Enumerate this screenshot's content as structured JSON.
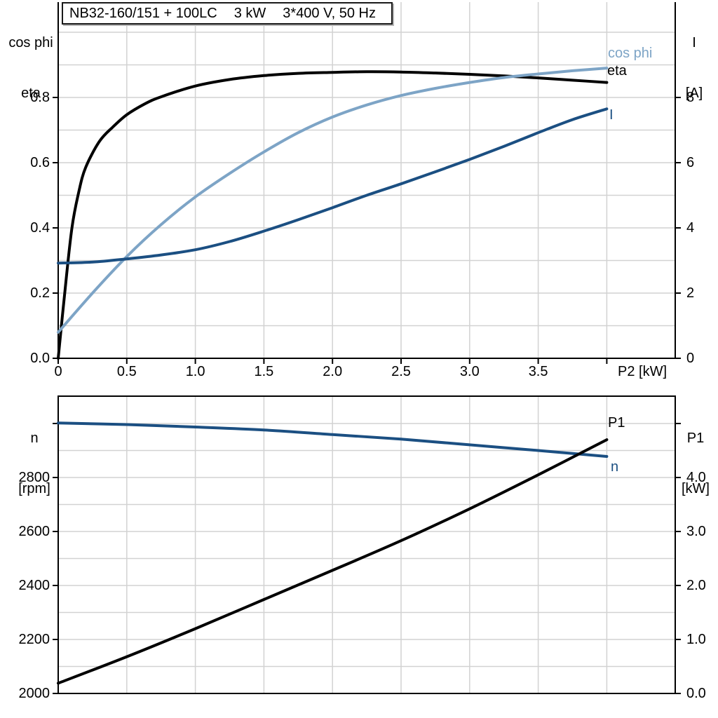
{
  "title": {
    "model": "NB32-160/151 + 100LC",
    "power": "3 kW",
    "voltage": "3*400 V, 50 Hz"
  },
  "colors": {
    "eta": "#000000",
    "cos_phi": "#7da4c6",
    "current": "#1b4f82",
    "speed": "#1b4f82",
    "p1": "#000000",
    "grid": "#d2d2d2",
    "axis": "#000000"
  },
  "chart_data": [
    {
      "id": "electrical",
      "type": "line",
      "x_axis": {
        "label": "P2 [kW]",
        "min": 0,
        "max": 4.5,
        "tick_values": [
          0,
          0.5,
          1.0,
          1.5,
          2.0,
          2.5,
          3.0,
          3.5,
          4.0
        ],
        "tick_labels": [
          "0",
          "0.5",
          "1.0",
          "1.5",
          "2.0",
          "2.5",
          "3.0",
          "3.5",
          ""
        ],
        "grid_step": 0.5
      },
      "y_left": {
        "label_lines": [
          "cos phi",
          "eta"
        ],
        "min": 0,
        "max": 1.09,
        "tick_values": [
          0,
          0.2,
          0.4,
          0.6,
          0.8
        ],
        "tick_labels": [
          "0.0",
          "0.2",
          "0.4",
          "0.6",
          "0.8"
        ],
        "grid_step": 0.1
      },
      "y_right": {
        "label_lines": [
          "I",
          "[A]"
        ],
        "min": 0,
        "max": 10.9,
        "tick_values": [
          0,
          2,
          4,
          6,
          8
        ],
        "tick_labels": [
          "0",
          "2",
          "4",
          "6",
          "8"
        ]
      },
      "series": [
        {
          "name": "eta",
          "label": "eta",
          "axis": "left",
          "color": "#000000",
          "points": [
            [
              0,
              0
            ],
            [
              0.05,
              0.21
            ],
            [
              0.1,
              0.4
            ],
            [
              0.15,
              0.51
            ],
            [
              0.2,
              0.585
            ],
            [
              0.3,
              0.665
            ],
            [
              0.4,
              0.71
            ],
            [
              0.5,
              0.747
            ],
            [
              0.63,
              0.78
            ],
            [
              0.75,
              0.802
            ],
            [
              1.0,
              0.835
            ],
            [
              1.25,
              0.855
            ],
            [
              1.5,
              0.867
            ],
            [
              1.75,
              0.874
            ],
            [
              2.0,
              0.877
            ],
            [
              2.25,
              0.879
            ],
            [
              2.5,
              0.878
            ],
            [
              2.75,
              0.875
            ],
            [
              3.0,
              0.871
            ],
            [
              3.25,
              0.866
            ],
            [
              3.5,
              0.86
            ],
            [
              3.75,
              0.853
            ],
            [
              4.0,
              0.846
            ]
          ]
        },
        {
          "name": "cos phi",
          "label": "cos phi",
          "axis": "left",
          "color": "#7da4c6",
          "points": [
            [
              0,
              0.08
            ],
            [
              0.25,
              0.2
            ],
            [
              0.5,
              0.312
            ],
            [
              0.75,
              0.41
            ],
            [
              1.0,
              0.495
            ],
            [
              1.25,
              0.567
            ],
            [
              1.5,
              0.633
            ],
            [
              1.75,
              0.692
            ],
            [
              2.0,
              0.74
            ],
            [
              2.25,
              0.777
            ],
            [
              2.5,
              0.806
            ],
            [
              2.75,
              0.828
            ],
            [
              3.0,
              0.846
            ],
            [
              3.25,
              0.861
            ],
            [
              3.5,
              0.872
            ],
            [
              3.75,
              0.882
            ],
            [
              4.0,
              0.89
            ]
          ]
        },
        {
          "name": "I",
          "label": "I",
          "axis": "right",
          "color": "#1b4f82",
          "points": [
            [
              0,
              2.92
            ],
            [
              0.25,
              2.95
            ],
            [
              0.5,
              3.05
            ],
            [
              0.75,
              3.17
            ],
            [
              1.0,
              3.33
            ],
            [
              1.25,
              3.58
            ],
            [
              1.5,
              3.9
            ],
            [
              1.75,
              4.25
            ],
            [
              2.0,
              4.62
            ],
            [
              2.25,
              5.0
            ],
            [
              2.5,
              5.35
            ],
            [
              2.75,
              5.72
            ],
            [
              3.0,
              6.1
            ],
            [
              3.25,
              6.5
            ],
            [
              3.5,
              6.92
            ],
            [
              3.75,
              7.32
            ],
            [
              4.0,
              7.65
            ]
          ]
        }
      ]
    },
    {
      "id": "speed-power",
      "type": "line",
      "x_axis": {
        "label": "",
        "min": 0,
        "max": 4.5,
        "tick_values": [],
        "tick_labels": [],
        "grid_step": 0.5
      },
      "y_left": {
        "label_lines": [
          "n",
          "[rpm]"
        ],
        "min": 2000,
        "max": 3100,
        "tick_values": [
          2000,
          2200,
          2400,
          2600,
          2800,
          3000
        ],
        "tick_labels": [
          "2000",
          "2200",
          "2400",
          "2600",
          "2800",
          ""
        ],
        "grid_step": 100
      },
      "y_right": {
        "label_lines": [
          "P1",
          "[kW]"
        ],
        "min": 0,
        "max": 5.5,
        "tick_values": [
          0,
          1,
          2,
          3,
          4,
          5
        ],
        "tick_labels": [
          "0.0",
          "1.0",
          "2.0",
          "3.0",
          "4.0",
          ""
        ],
        "grid_step": 0.5
      },
      "series": [
        {
          "name": "n",
          "label": "n",
          "axis": "left",
          "color": "#1b4f82",
          "points": [
            [
              0,
              3002
            ],
            [
              0.5,
              2996
            ],
            [
              1.0,
              2987
            ],
            [
              1.5,
              2976
            ],
            [
              2.0,
              2959
            ],
            [
              2.5,
              2942
            ],
            [
              3.0,
              2921
            ],
            [
              3.5,
              2900
            ],
            [
              4.0,
              2878
            ]
          ]
        },
        {
          "name": "P1",
          "label": "P1",
          "axis": "right",
          "color": "#000000",
          "points": [
            [
              0,
              0.19
            ],
            [
              0.5,
              0.68
            ],
            [
              1.0,
              1.2
            ],
            [
              1.5,
              1.74
            ],
            [
              2.0,
              2.28
            ],
            [
              2.5,
              2.83
            ],
            [
              3.0,
              3.42
            ],
            [
              3.5,
              4.05
            ],
            [
              4.0,
              4.7
            ]
          ]
        }
      ]
    }
  ]
}
